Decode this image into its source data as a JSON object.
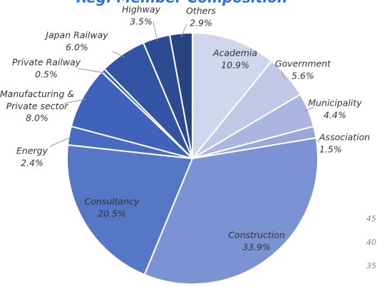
{
  "chart_data": {
    "type": "pie",
    "title": "Reg. Member Composition",
    "categories": [
      "Academia",
      "Government",
      "Municipality",
      "Association",
      "Construction",
      "Consultancy",
      "Energy",
      "Manufacturing & Private sector",
      "Private Railway",
      "Japan Railway",
      "Highway",
      "Others"
    ],
    "values": [
      10.9,
      5.6,
      4.4,
      1.5,
      33.9,
      20.5,
      2.4,
      8.0,
      0.5,
      6.0,
      3.5,
      2.9
    ],
    "value_labels": [
      "10.9%",
      "5.6%",
      "4.4%",
      "1.5%",
      "33.9%",
      "20.5%",
      "2.4%",
      "8.0%",
      "0.5%",
      "6.0%",
      "3.5%",
      "2.9%"
    ],
    "colors": [
      "#d0d6ec",
      "#c0c8e6",
      "#aab6df",
      "#9aa8d9",
      "#7b93d2",
      "#5577c6",
      "#4a6cc0",
      "#3f63bb",
      "#3a5cb0",
      "#3354a5",
      "#2d4a92",
      "#284480"
    ],
    "side_labels": [
      "45",
      "40",
      "35"
    ]
  }
}
